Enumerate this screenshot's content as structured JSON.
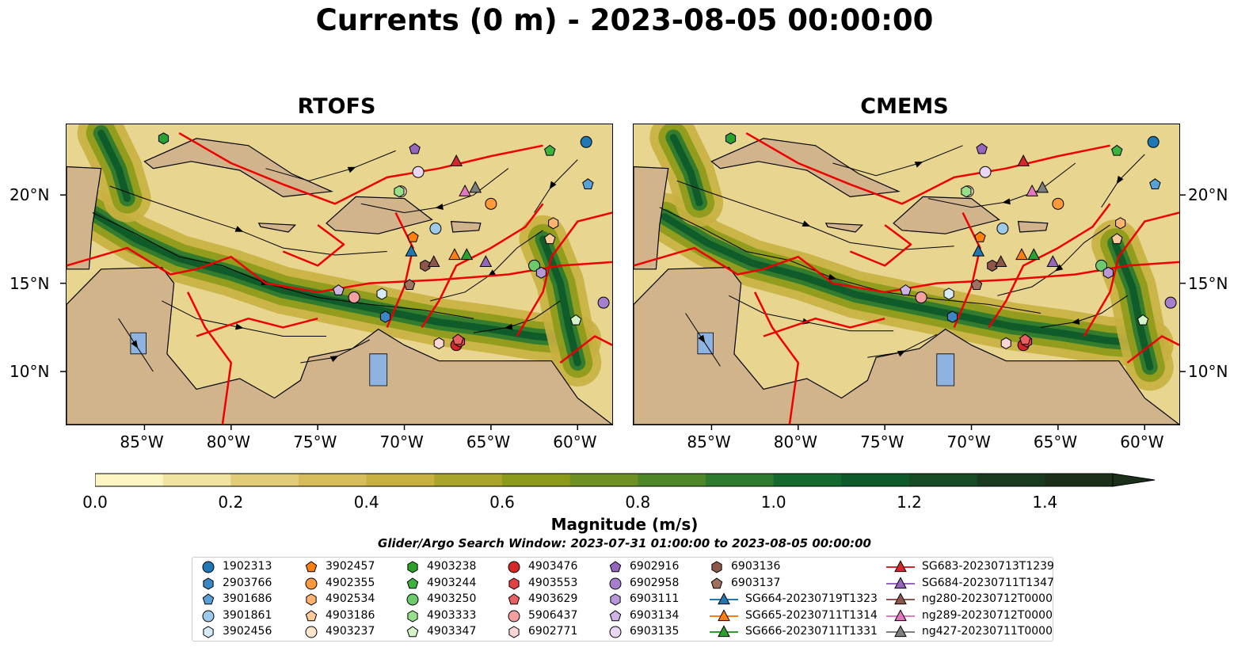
{
  "title": "Currents (0 m) - 2023-08-05 00:00:00",
  "panels": [
    {
      "title": "RTOFS"
    },
    {
      "title": "CMEMS"
    }
  ],
  "axes": {
    "x_ticks": [
      "85°W",
      "80°W",
      "75°W",
      "70°W",
      "65°W",
      "60°W"
    ],
    "y_ticks": [
      "20°N",
      "15°N",
      "10°N"
    ],
    "lon_range": [
      -89.5,
      -58.0
    ],
    "lat_range": [
      7.0,
      24.0
    ]
  },
  "colorbar": {
    "label": "Magnitude (m/s)",
    "ticks": [
      "0.0",
      "0.2",
      "0.4",
      "0.6",
      "0.8",
      "1.0",
      "1.2",
      "1.4"
    ],
    "range": [
      0.0,
      1.5
    ],
    "extend": "max",
    "colors": [
      "#fdf6c3",
      "#f2e3a0",
      "#e3cc78",
      "#d6bc5a",
      "#c8b040",
      "#a9a42a",
      "#8c9a1a",
      "#6e9020",
      "#4f8628",
      "#2e7a2e",
      "#146a2e",
      "#0f5a2a",
      "#174a26",
      "#1a3a20",
      "#1b2f1a"
    ]
  },
  "search_window": "Glider/Argo Search Window: 2023-07-31 01:00:00 to 2023-08-05 00:00:00",
  "legend": [
    {
      "label": "1902313",
      "marker": "circle",
      "color": "#1f77b4"
    },
    {
      "label": "2903766",
      "marker": "hexagon",
      "color": "#3a87c4"
    },
    {
      "label": "3901686",
      "marker": "pentagon",
      "color": "#5aa0d8"
    },
    {
      "label": "3901861",
      "marker": "circle",
      "color": "#9ecae9"
    },
    {
      "label": "3902456",
      "marker": "hexagon",
      "color": "#d6ebf7"
    },
    {
      "label": "3902457",
      "marker": "pentagon",
      "color": "#ff7f0e"
    },
    {
      "label": "4902355",
      "marker": "circle",
      "color": "#ff9a3c"
    },
    {
      "label": "4902534",
      "marker": "hexagon",
      "color": "#ffb470"
    },
    {
      "label": "4903186",
      "marker": "pentagon",
      "color": "#ffcc99"
    },
    {
      "label": "4903237",
      "marker": "circle",
      "color": "#ffe6cc"
    },
    {
      "label": "4903238",
      "marker": "hexagon",
      "color": "#2ca02c"
    },
    {
      "label": "4903244",
      "marker": "pentagon",
      "color": "#3cb43c"
    },
    {
      "label": "4903250",
      "marker": "circle",
      "color": "#6cc96c"
    },
    {
      "label": "4903333",
      "marker": "hexagon",
      "color": "#98df8a"
    },
    {
      "label": "4903347",
      "marker": "pentagon",
      "color": "#d4f5c8"
    },
    {
      "label": "4903476",
      "marker": "circle",
      "color": "#d62728"
    },
    {
      "label": "4903553",
      "marker": "hexagon",
      "color": "#e04040"
    },
    {
      "label": "4903629",
      "marker": "pentagon",
      "color": "#ea6060"
    },
    {
      "label": "5906437",
      "marker": "circle",
      "color": "#f5a0a0"
    },
    {
      "label": "6902771",
      "marker": "hexagon",
      "color": "#fcd5d5"
    },
    {
      "label": "6902916",
      "marker": "pentagon",
      "color": "#9467bd"
    },
    {
      "label": "6902958",
      "marker": "circle",
      "color": "#a57fcc"
    },
    {
      "label": "6903111",
      "marker": "hexagon",
      "color": "#b897d8"
    },
    {
      "label": "6903134",
      "marker": "pentagon",
      "color": "#cfb5e6"
    },
    {
      "label": "6903135",
      "marker": "circle",
      "color": "#ead7f5"
    },
    {
      "label": "6903136",
      "marker": "hexagon",
      "color": "#8c564b"
    },
    {
      "label": "6903137",
      "marker": "pentagon",
      "color": "#a0705f"
    },
    {
      "label": "SG664-20230719T1323",
      "marker": "triangle-line",
      "color": "#1f77b4"
    },
    {
      "label": "SG665-20230711T1314",
      "marker": "triangle-line",
      "color": "#ff7f0e"
    },
    {
      "label": "SG666-20230711T1331",
      "marker": "triangle-line",
      "color": "#2ca02c"
    },
    {
      "label": "SG683-20230713T1239",
      "marker": "triangle-line",
      "color": "#d62728"
    },
    {
      "label": "SG684-20230711T1347",
      "marker": "triangle-line",
      "color": "#9467bd"
    },
    {
      "label": "ng280-20230712T0000",
      "marker": "triangle-line",
      "color": "#8c564b"
    },
    {
      "label": "ng289-20230712T0000",
      "marker": "triangle-line",
      "color": "#e377c2"
    },
    {
      "label": "ng427-20230711T0000",
      "marker": "triangle-line",
      "color": "#7f7f7f"
    }
  ],
  "observations": {
    "1902313": [
      -59.5,
      23.0
    ],
    "2903766": [
      -71.1,
      13.1
    ],
    "3901686": [
      -59.4,
      20.6
    ],
    "3901861": [
      -68.2,
      18.1
    ],
    "3902456": [
      -71.3,
      14.4
    ],
    "3902457": [
      -69.5,
      17.6
    ],
    "4902355": [
      -65.0,
      19.5
    ],
    "4902534": [
      -61.4,
      18.4
    ],
    "4903186": [
      -61.6,
      17.5
    ],
    "4903237": [
      -70.2,
      20.2
    ],
    "4903238": [
      -83.9,
      23.2
    ],
    "4903244": [
      -61.6,
      22.5
    ],
    "4903250": [
      -62.5,
      16.0
    ],
    "4903333": [
      -70.3,
      20.2
    ],
    "4903347": [
      -60.1,
      12.9
    ],
    "4903476": [
      -67.0,
      11.5
    ],
    "4903553": [
      -66.8,
      11.7
    ],
    "4903629": [
      -66.9,
      11.8
    ],
    "5906437": [
      -72.9,
      14.2
    ],
    "6902771": [
      -68.0,
      11.6
    ],
    "6902916": [
      -69.4,
      22.6
    ],
    "6902958": [
      -58.5,
      13.9
    ],
    "6903111": [
      -62.1,
      15.6
    ],
    "6903134": [
      -73.8,
      14.6
    ],
    "6903135": [
      -69.2,
      21.3
    ],
    "6903136": [
      -68.8,
      16.0
    ],
    "6903137": [
      -69.7,
      14.9
    ],
    "SG664-20230719T1323": [
      -69.6,
      16.8
    ],
    "SG665-20230711T1314": [
      -67.1,
      16.6
    ],
    "SG666-20230711T1331": [
      -66.4,
      16.6
    ],
    "SG683-20230713T1239": [
      -67.0,
      21.9
    ],
    "SG684-20230711T1347": [
      -65.3,
      16.2
    ],
    "ng280-20230712T0000": [
      -68.3,
      16.2
    ],
    "ng289-20230712T0000": [
      -66.5,
      20.2
    ],
    "ng427-20230711T0000": [
      -65.9,
      20.4
    ]
  }
}
